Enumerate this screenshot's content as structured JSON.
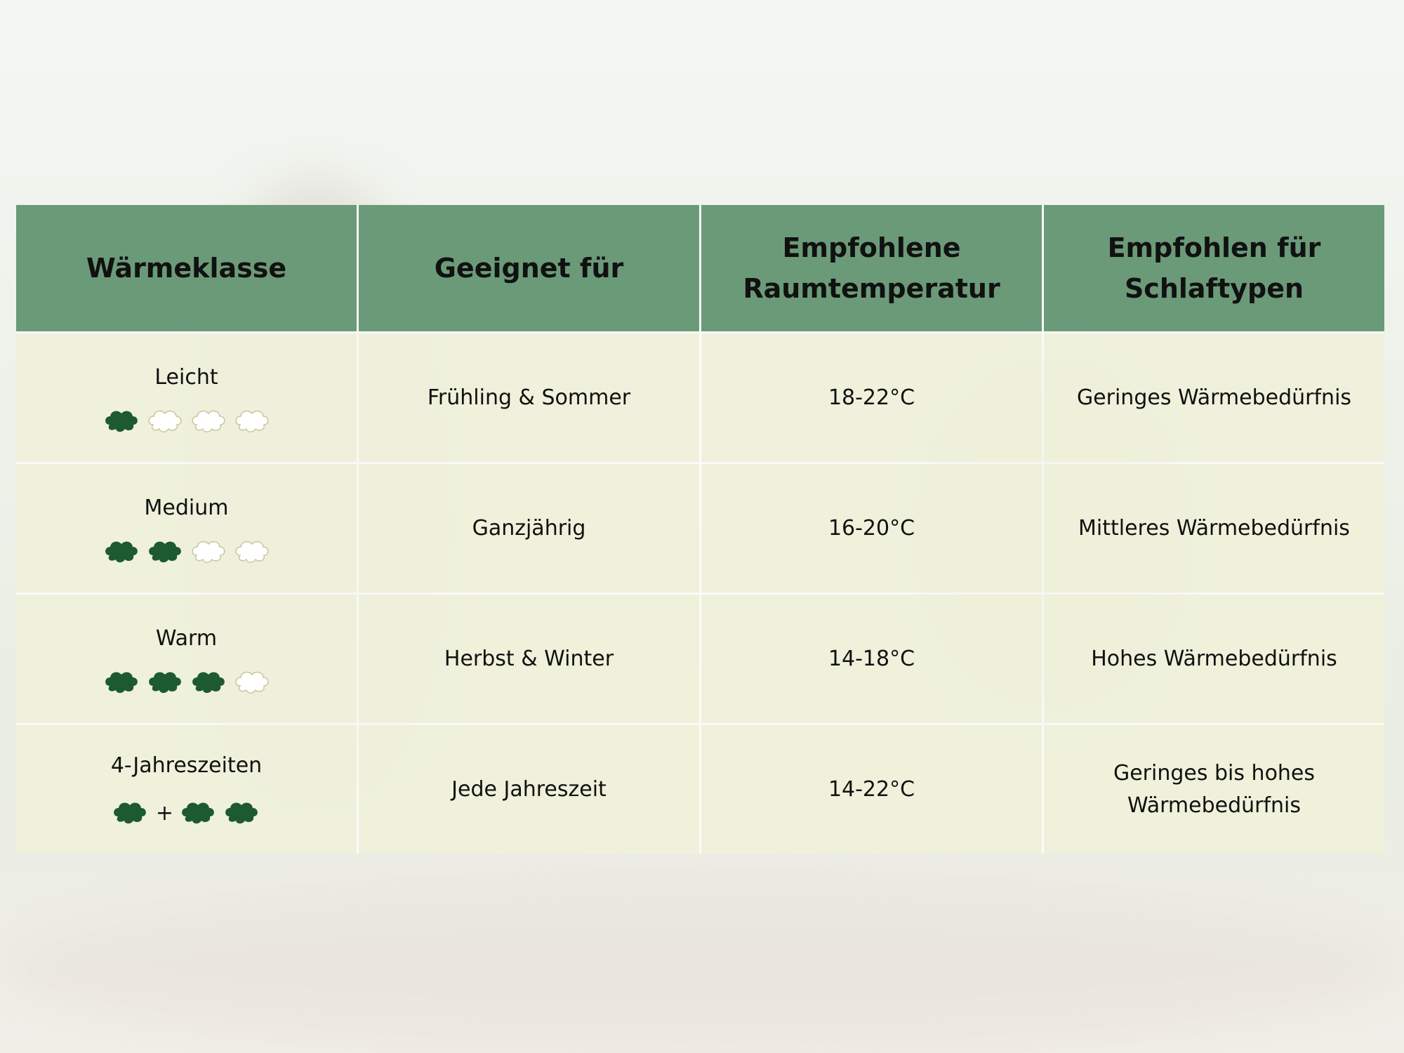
{
  "table": {
    "header": [
      "Wärmeklasse",
      "Geeignet für",
      "Empfohlene Raumtemperatur",
      "Empfohlen für Schlaftypen"
    ],
    "rows": [
      [
        "Leicht",
        "Frühling & Sommer",
        "18-22°C",
        "Geringes Wärmebedürfnis"
      ],
      [
        "Medium",
        "Ganzjährig",
        "16-20°C",
        "Mittleres Wärmebedürfnis"
      ],
      [
        "Warm",
        "Herbst & Winter",
        "14-18°C",
        "Hohes Wärmebedürfnis"
      ],
      [
        "4-Jahreszeiten",
        "Jede Jahreszeit",
        "14-22°C",
        "Geringes bis hohes Wärmebedürfnis"
      ]
    ],
    "plus": "+"
  }
}
